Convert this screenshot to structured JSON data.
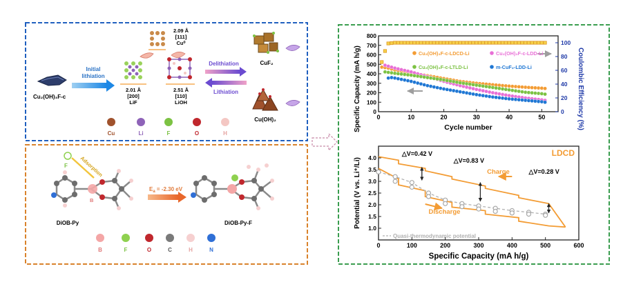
{
  "mechanism": {
    "precursor": "Cu₂(OH)₃F-c",
    "initial_lithiation": [
      "Initial",
      "lithiation"
    ],
    "cu0": [
      "2.09 Å",
      "[111]",
      "Cu⁰"
    ],
    "lif": [
      "2.01 Å",
      "[200]",
      "LiF"
    ],
    "lioh": [
      "2.51 Å",
      "[110]",
      "LiOH"
    ],
    "delithiation": "Delithiation",
    "lithiation": "Lithiation",
    "cuf2": "CuF₂",
    "cuoh2": "Cu(OH)₂",
    "legend": [
      {
        "label": "Cu",
        "color": "#a0522d"
      },
      {
        "label": "Li",
        "color": "#8e63b8"
      },
      {
        "label": "F",
        "color": "#7cc243"
      },
      {
        "label": "O",
        "color": "#c0272d"
      },
      {
        "label": "H",
        "color": "#f4c7c3"
      }
    ]
  },
  "adsorption": {
    "f_label": "F",
    "adsorption_label": "Adsorption",
    "b_label": "B",
    "energy_label": "E",
    "energy_sub": "a",
    "energy_value": " = -2.30 eV",
    "mol1": "DiOB-Py",
    "mol2": "DiOB-Py-F",
    "legend": [
      {
        "label": "B",
        "color": "#f4a6a6"
      },
      {
        "label": "F",
        "color": "#8fd14f"
      },
      {
        "label": "O",
        "color": "#c0272d"
      },
      {
        "label": "C",
        "color": "#7a7a7a"
      },
      {
        "label": "H",
        "color": "#f6d0d0"
      },
      {
        "label": "N",
        "color": "#2f6fd6"
      }
    ]
  },
  "chart_data": [
    {
      "type": "scatter",
      "xlabel": "Cycle number",
      "ylabel": "Specific Capacity (mA h/g)",
      "y2label": "Coulombic Efficiency (%)",
      "xlim": [
        0,
        55
      ],
      "ylim": [
        0,
        800
      ],
      "y2lim": [
        0,
        110
      ],
      "xticks": [
        0,
        10,
        20,
        30,
        40,
        50
      ],
      "yticks": [
        0,
        100,
        200,
        300,
        400,
        500,
        600,
        700,
        800
      ],
      "y2ticks": [
        0,
        20,
        40,
        60,
        80,
        100
      ],
      "legend": "top",
      "series": [
        {
          "name": "Cu₂(OH)₃F-c-LDCD-Li",
          "color": "#f39c34",
          "x": [
            1,
            3,
            5,
            10,
            15,
            20,
            25,
            30,
            35,
            40,
            45,
            50,
            51
          ],
          "y": [
            470,
            460,
            440,
            410,
            380,
            350,
            320,
            300,
            285,
            270,
            258,
            248,
            245
          ]
        },
        {
          "name": "Cu₂(OH)₃F-c-LDD-Li",
          "color": "#e86fd6",
          "x": [
            2,
            3,
            5,
            10,
            15,
            20,
            25,
            30,
            35,
            40,
            45,
            50,
            51
          ],
          "y": [
            490,
            480,
            460,
            420,
            370,
            320,
            275,
            235,
            200,
            170,
            145,
            125,
            120
          ]
        },
        {
          "name": "Cu₂(OH)₃F-c-LTLD-Li",
          "color": "#7cc243",
          "x": [
            2,
            3,
            5,
            10,
            15,
            20,
            25,
            30,
            35,
            40,
            45,
            50,
            51
          ],
          "y": [
            420,
            415,
            405,
            385,
            360,
            335,
            305,
            280,
            255,
            230,
            205,
            190,
            185
          ]
        },
        {
          "name": "m-CuF₂-LDD-Li",
          "color": "#1f77d4",
          "x": [
            3,
            4,
            5,
            10,
            15,
            20,
            25,
            30,
            35,
            40,
            45,
            50,
            51
          ],
          "y": [
            355,
            360,
            355,
            320,
            275,
            240,
            210,
            180,
            155,
            135,
            120,
            105,
            100
          ]
        }
      ],
      "ce_series": {
        "color": "#f39c34",
        "x": [
          1,
          2,
          3,
          5,
          10,
          20,
          30,
          40,
          50,
          51
        ],
        "y": [
          72,
          88,
          99,
          100,
          100,
          100,
          100,
          100,
          100,
          100
        ]
      }
    },
    {
      "type": "line",
      "xlabel": "Specific Capacity (mA h/g)",
      "ylabel": "Potential (V vs. Li⁺/Li)",
      "xlim": [
        0,
        600
      ],
      "ylim": [
        0.5,
        4.5
      ],
      "xticks": [
        0,
        100,
        200,
        300,
        400,
        500,
        600
      ],
      "yticks": [
        1.0,
        1.5,
        2.0,
        2.5,
        3.0,
        3.5,
        4.0
      ],
      "title": "LDCD",
      "annotations": [
        "△V=0.42 V",
        "△V=0.83 V",
        "△V=0.28 V",
        "Charge",
        "Discharge"
      ],
      "legend_entry": "Quasi-thermodynamic potential",
      "series": [
        {
          "name": "Charge",
          "color": "#f39c34",
          "x": [
            0,
            60,
            60,
            140,
            140,
            220,
            220,
            320,
            320,
            420,
            420,
            510,
            560
          ],
          "y": [
            4.05,
            3.9,
            3.75,
            3.55,
            3.45,
            3.2,
            3.1,
            2.8,
            2.7,
            2.4,
            2.3,
            2.05,
            1.05
          ]
        },
        {
          "name": "Discharge",
          "color": "#f39c34",
          "x": [
            0,
            60,
            60,
            140,
            140,
            220,
            220,
            320,
            320,
            420,
            420,
            510,
            560
          ],
          "y": [
            3.55,
            3.1,
            2.85,
            2.6,
            2.35,
            2.1,
            1.9,
            1.75,
            1.6,
            1.45,
            1.3,
            1.1,
            1.05
          ]
        },
        {
          "name": "Quasi-thermodynamic potential",
          "color": "#b0b0b0",
          "x": [
            0,
            50,
            100,
            150,
            200,
            250,
            300,
            350,
            400,
            450,
            500
          ],
          "y": [
            3.4,
            3.2,
            2.95,
            2.5,
            2.2,
            2.05,
            1.95,
            1.85,
            1.75,
            1.68,
            1.6
          ]
        }
      ]
    }
  ]
}
